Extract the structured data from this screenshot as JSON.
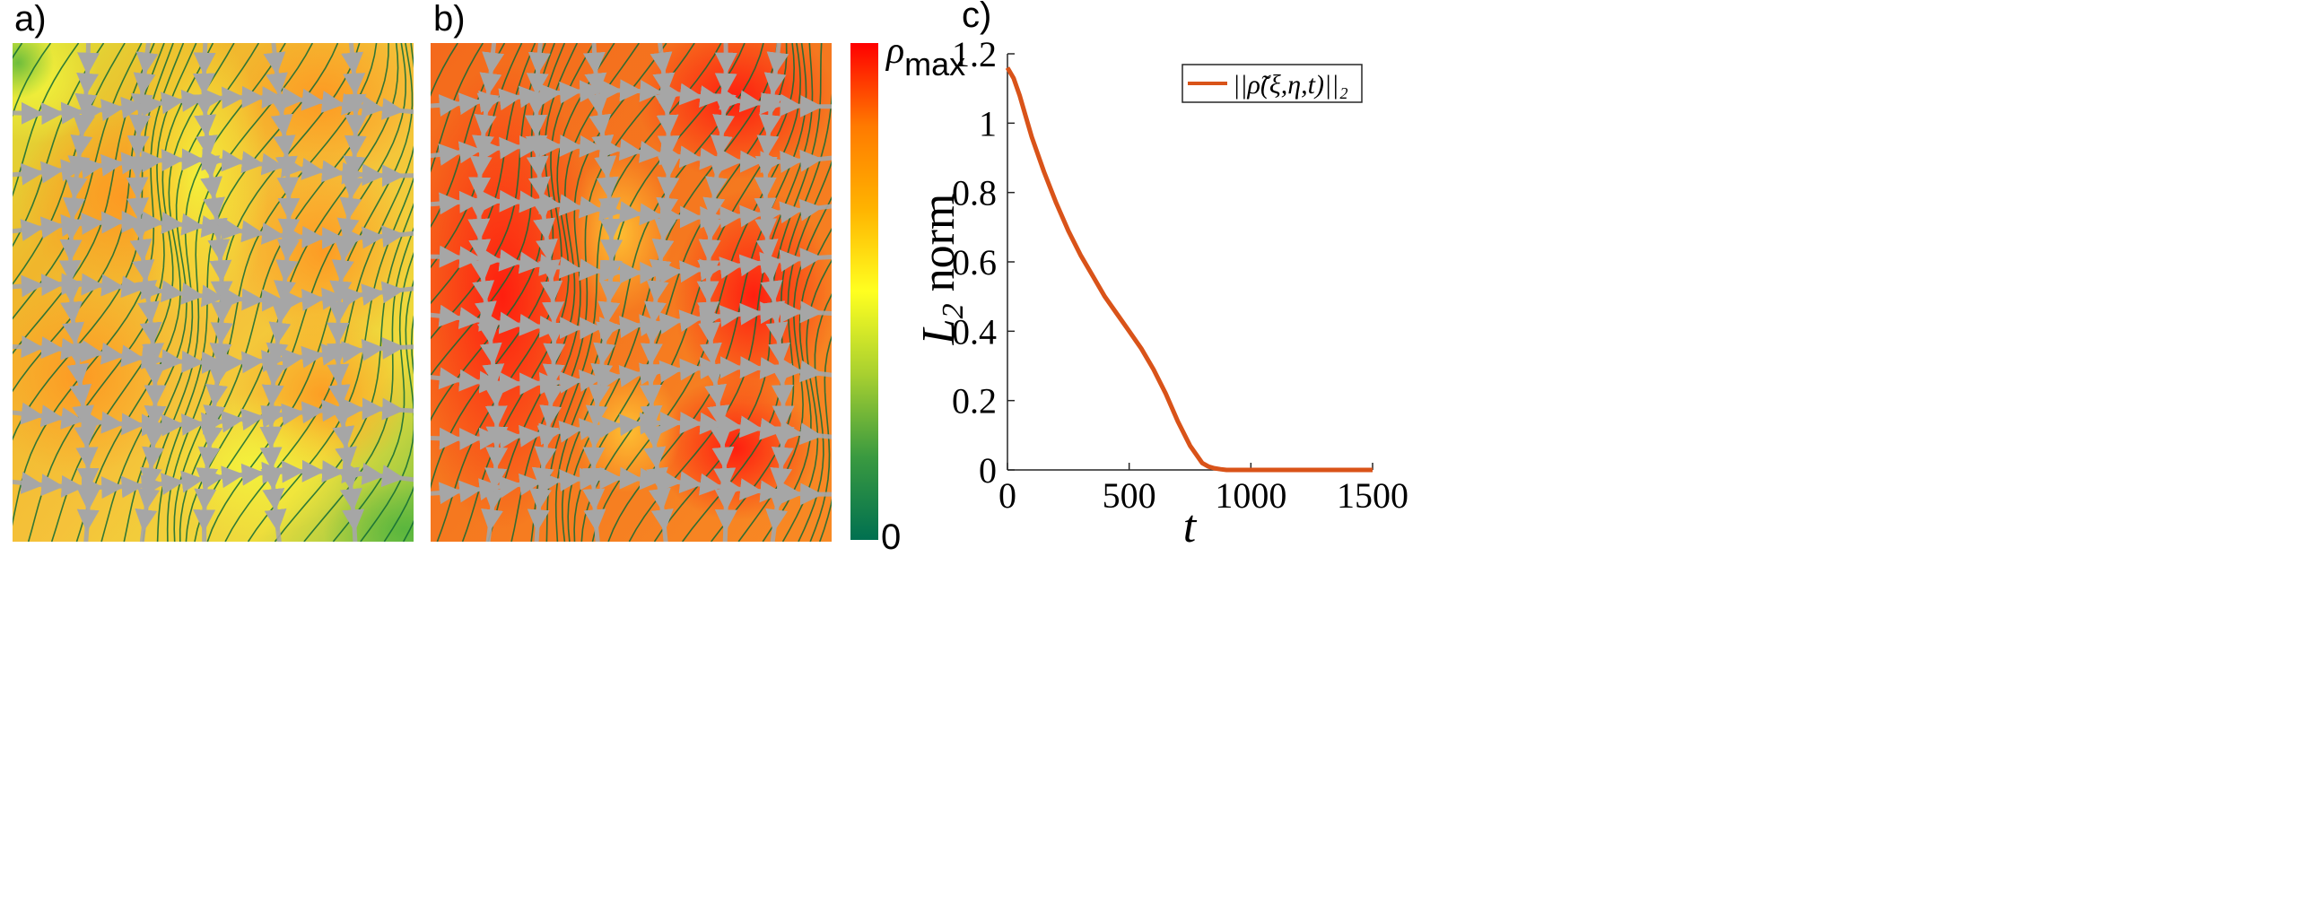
{
  "panels": {
    "a": {
      "label": "a)"
    },
    "b": {
      "label": "b)"
    },
    "c": {
      "label": "c)"
    }
  },
  "colorbar": {
    "max_label_symbol": "ρ",
    "max_label_sub": "max",
    "min_label": "0",
    "colors": [
      "#ff0000",
      "#ff7a00",
      "#ffb300",
      "#ffff20",
      "#a8d030",
      "#3a9a40",
      "#007050"
    ]
  },
  "field_colors": {
    "a": {
      "base": "#f2b428",
      "high": "#ff9b20",
      "low": "#eef03c",
      "edge": "#5fbd3c"
    },
    "b": {
      "base": "#fa6a1e",
      "high": "#ff2a10",
      "low": "#ffd43a"
    },
    "streamline": "#0f6a35",
    "arrow": "#a6a6a6"
  },
  "chart_data": {
    "type": "line",
    "title": "",
    "xlabel": "t",
    "ylabel": "L_2 norm",
    "xlim": [
      0,
      1500
    ],
    "ylim": [
      0,
      1.2
    ],
    "xticks": [
      0,
      500,
      1000,
      1500
    ],
    "xtick_labels": [
      "0",
      "500",
      "1000",
      "1500"
    ],
    "yticks": [
      0,
      0.2,
      0.4,
      0.6,
      0.8,
      1,
      1.2
    ],
    "ytick_labels": [
      "0",
      "0.2",
      "0.4",
      "0.6",
      "0.8",
      "1",
      "1.2"
    ],
    "legend": "top-right",
    "series": [
      {
        "name": "||ρ̃(ξ,η,t)||₂",
        "color": "#d95319",
        "x": [
          0,
          25,
          50,
          75,
          100,
          150,
          200,
          250,
          300,
          350,
          400,
          450,
          500,
          550,
          600,
          650,
          700,
          750,
          800,
          825,
          850,
          875,
          900,
          1000,
          1100,
          1200,
          1300,
          1400,
          1500
        ],
        "y": [
          1.16,
          1.13,
          1.08,
          1.02,
          0.96,
          0.86,
          0.77,
          0.69,
          0.62,
          0.56,
          0.5,
          0.45,
          0.4,
          0.35,
          0.29,
          0.22,
          0.14,
          0.07,
          0.02,
          0.01,
          0.005,
          0.002,
          0.0,
          0.0,
          0.0,
          0.0,
          0.0,
          0.0,
          0.0
        ]
      }
    ]
  }
}
